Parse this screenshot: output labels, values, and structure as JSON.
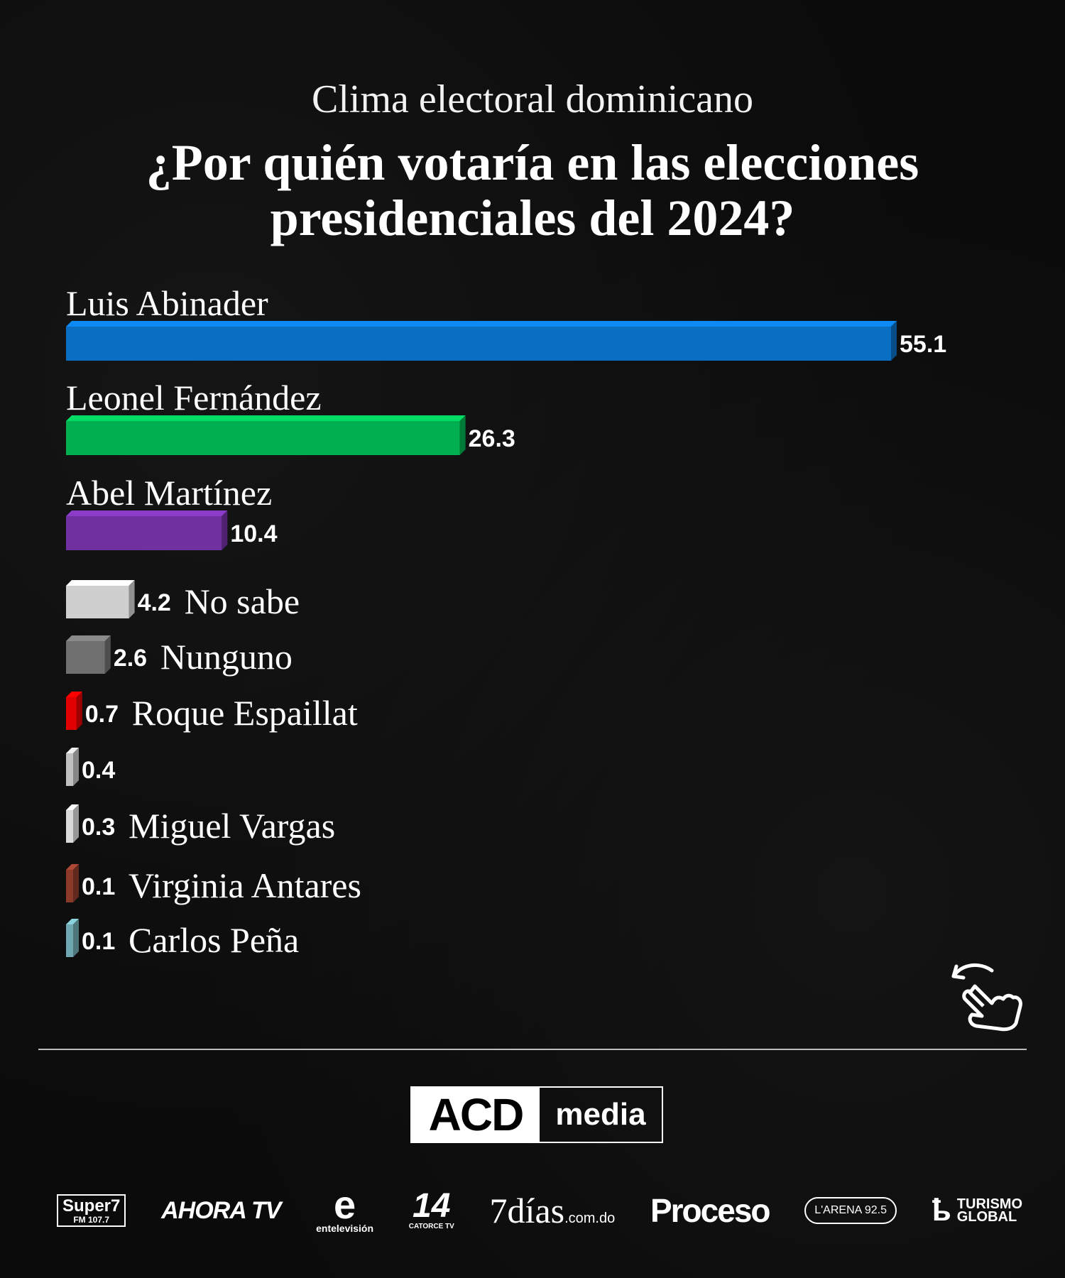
{
  "header": {
    "subtitle": "Clima electoral dominicano",
    "title": "¿Por quién votaría en las elecciones presidenciales del 2024?"
  },
  "chart_data": {
    "type": "bar",
    "orientation": "horizontal",
    "title": "¿Por quién votaría en las elecciones presidenciales del 2024?",
    "subtitle": "Clima electoral dominicano",
    "categories": [
      "Luis Abinader",
      "Leonel Fernández",
      "Abel Martínez",
      "No sabe",
      "Nunguno",
      "Roque Espaillat",
      "",
      "Miguel Vargas",
      "Virginia Antares",
      "Carlos Peña"
    ],
    "values": [
      55.1,
      26.3,
      10.4,
      4.2,
      2.6,
      0.7,
      0.4,
      0.3,
      0.1,
      0.1
    ],
    "value_labels": [
      "55.1",
      "26.3",
      "10.4",
      "4.2",
      "2.6",
      "0.7",
      "0.4",
      "0.3",
      "0.1",
      "0.1"
    ],
    "colors": [
      "#0a6ec2",
      "#00b050",
      "#7030a0",
      "#cfcfcf",
      "#6f6f6f",
      "#e00000",
      "#bfbfbf",
      "#d9d9d9",
      "#8b3a2a",
      "#6fa8b0"
    ],
    "label_position": [
      "above",
      "above",
      "above",
      "inline",
      "inline",
      "inline",
      "inline",
      "inline",
      "inline",
      "inline"
    ],
    "xlim": [
      0,
      55.1
    ],
    "grid": false,
    "legend": "none"
  },
  "icons": {
    "swipe": "swipe-hand-icon"
  },
  "branding": {
    "acd_left": "ACD",
    "acd_right": "media"
  },
  "partners": {
    "super_main": "Super7",
    "super_sub": "FM 107.7",
    "ahora": "AHORA TV",
    "e_big": "e",
    "e_sub": "entelevisión",
    "catorce_big": "14",
    "catorce_sub": "CATORCE TV",
    "dias_main": "7días",
    "dias_sub": ".com.do",
    "proceso": "Proceso",
    "arena": "L'ARENA 92.5",
    "tg_line1": "TURISMO",
    "tg_line2": "GLOBAL"
  }
}
